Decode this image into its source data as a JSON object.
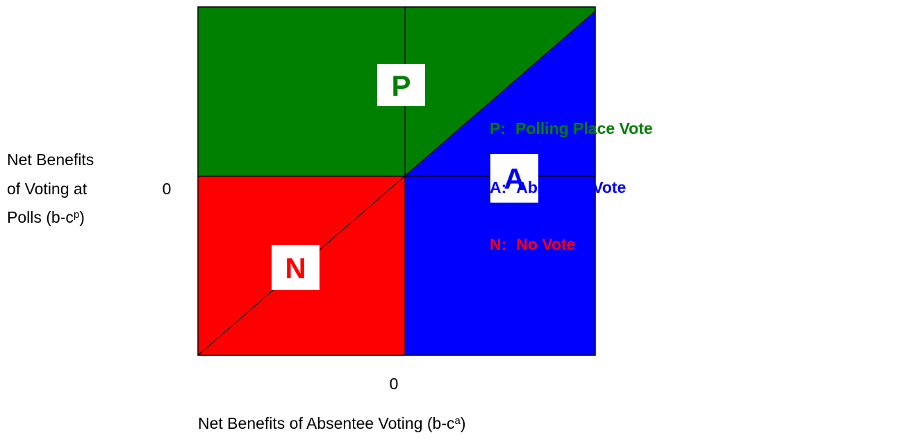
{
  "regions": [
    {
      "letter": "P",
      "color": "#008000",
      "legend_key": "P:",
      "legend_label": "Polling Place Vote"
    },
    {
      "letter": "A",
      "color": "#0000ff",
      "legend_key": "A:",
      "legend_label": "Absentee Vote"
    },
    {
      "letter": "N",
      "color": "#ff0000",
      "legend_key": "N:",
      "legend_label": "No Vote"
    }
  ],
  "y_axis": {
    "lines": [
      "Net Benefits",
      "of Voting at",
      "Polls (b-c"
    ],
    "superscript": "p",
    "close": ")",
    "zero": "0"
  },
  "x_axis": {
    "text": "Net Benefits of Absentee Voting (b-c",
    "superscript": "a",
    "close": ")",
    "zero": "0"
  }
}
